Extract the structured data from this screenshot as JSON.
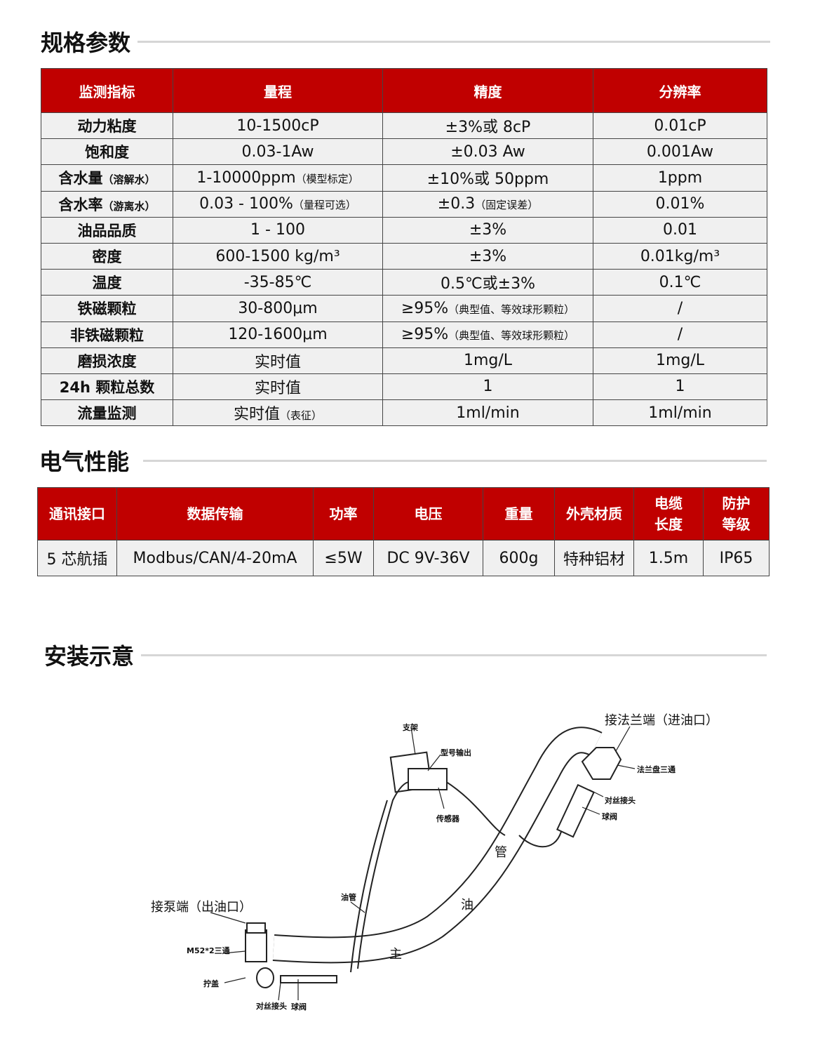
{
  "spec": {
    "title": "规格参数",
    "headers": [
      "监测指标",
      "量程",
      "精度",
      "分辨率"
    ],
    "rows": [
      [
        "动力粘度",
        "",
        "10-1500cP",
        "",
        "±3%或 8cP",
        "",
        "0.01cP"
      ],
      [
        "饱和度",
        "",
        "0.03-1Aw",
        "",
        "±0.03 Aw",
        "",
        "0.001Aw"
      ],
      [
        "含水量",
        "（溶解水）",
        "1-10000ppm",
        "（模型标定）",
        "±10%或 50ppm",
        "",
        "1ppm"
      ],
      [
        "含水率",
        "（游离水）",
        "0.03 - 100%",
        "（量程可选）",
        "±0.3",
        "（固定误差）",
        "0.01%"
      ],
      [
        "油品品质",
        "",
        "1 - 100",
        "",
        "±3%",
        "",
        "0.01"
      ],
      [
        "密度",
        "",
        "600-1500 kg/m³",
        "",
        "±3%",
        "",
        "0.01kg/m³"
      ],
      [
        "温度",
        "",
        "-35-85℃",
        "",
        "0.5℃或±3%",
        "",
        "0.1℃"
      ],
      [
        "铁磁颗粒",
        "",
        "30-800μm",
        "",
        "≥95%",
        "（典型值、等效球形颗粒）",
        "/"
      ],
      [
        "非铁磁颗粒",
        "",
        "120-1600μm",
        "",
        "≥95%",
        "（典型值、等效球形颗粒）",
        "/"
      ],
      [
        "磨损浓度",
        "",
        "实时值",
        "",
        "1mg/L",
        "",
        "1mg/L"
      ],
      [
        "24h 颗粒总数",
        "",
        "实时值",
        "",
        "1",
        "",
        "1"
      ],
      [
        "流量监测",
        "",
        "实时值",
        "（表征）",
        "1ml/min",
        "",
        "1ml/min"
      ]
    ]
  },
  "electrical": {
    "title": "电气性能",
    "headers": [
      "通讯接口",
      "数据传输",
      "功率",
      "电压",
      "重量",
      "外壳材质",
      "电缆\n长度",
      "防护\n等级"
    ],
    "values": [
      "5 芯航插",
      "Modbus/CAN/4-20mA",
      "≤5W",
      "DC 9V-36V",
      "600g",
      "特种铝材",
      "1.5m",
      "IP65"
    ]
  },
  "install": {
    "title": "安装示意",
    "labels": {
      "bracket": "支架",
      "model_output": "型号输出",
      "sensor": "传感器",
      "flange_end": "接法兰端（进油口）",
      "flange_tee": "法兰盘三通",
      "union1": "对丝接头",
      "valve1": "球阀",
      "pump_end": "接泵端（出油口）",
      "tee": "M52*2三通",
      "cap": "拧盖",
      "union2": "对丝接头",
      "valve2": "球阀",
      "oil_pipe": "油管",
      "main1": "主",
      "main2": "油",
      "main3": "管"
    }
  },
  "colors": {
    "header_bg": "#c00000",
    "cell_bg": "#f0f0f0"
  }
}
